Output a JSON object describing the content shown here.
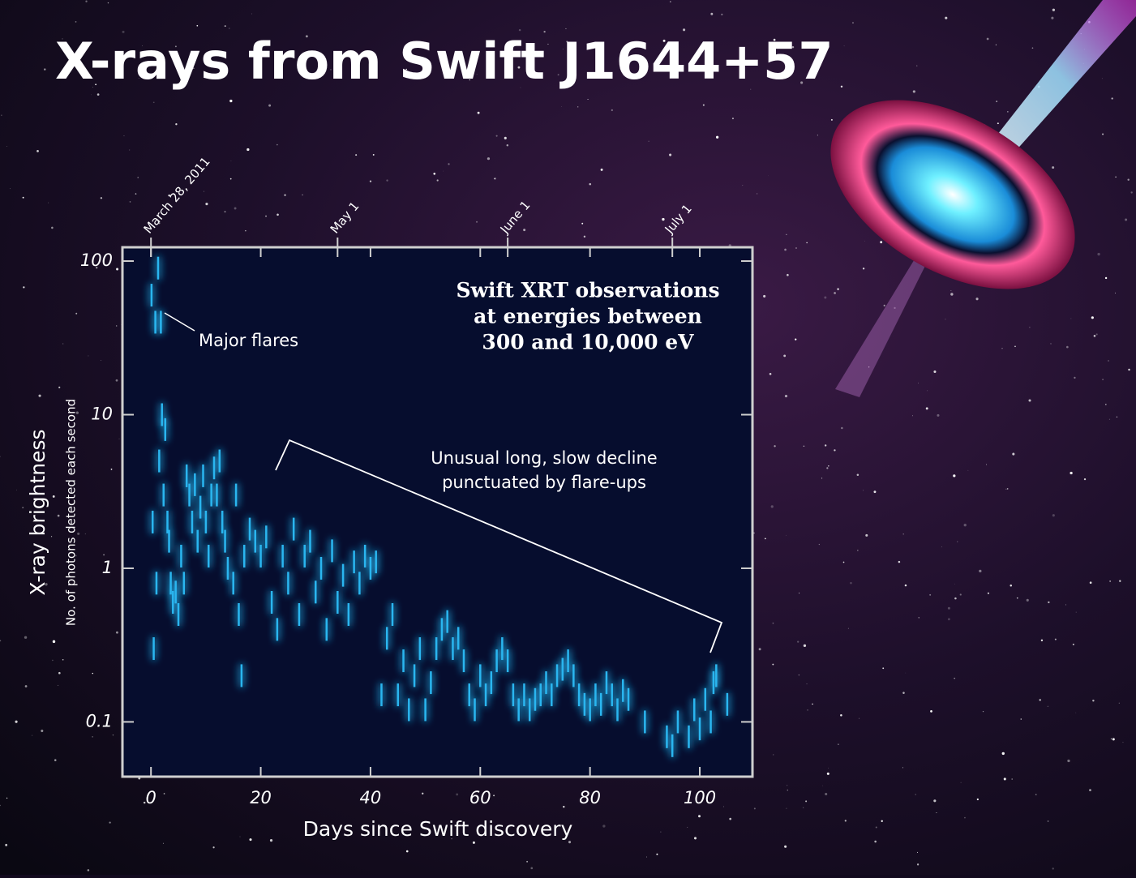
{
  "chart_data": {
    "type": "errorbar",
    "title": "X-rays from Swift J1644+57",
    "xlabel": "Days since Swift discovery",
    "ylabel": "X-ray brightness",
    "ylabel_sub": "No. of photons detected each second",
    "annotations": [
      "Major flares",
      "Swift XRT observations",
      "at energies between",
      "300 and 10,000 eV",
      "Unusual long, slow decline",
      "punctuated by flare-ups"
    ],
    "log_y": true,
    "color": "#29b6f0",
    "xlim": [
      -5.2,
      109.6
    ],
    "ylim": [
      0.044,
      123
    ],
    "xticks": [
      0,
      20,
      40,
      60,
      80,
      100
    ],
    "yticks": [
      0.1,
      1,
      10,
      100
    ],
    "x2ticks": [
      {
        "value": 0,
        "label": "March 28, 2011"
      },
      {
        "value": 34,
        "label": "May 1"
      },
      {
        "value": 65,
        "label": "June 1"
      },
      {
        "value": 95,
        "label": "July 1"
      }
    ],
    "x": [
      0.1,
      0.3,
      0.5,
      0.8,
      1.0,
      1.3,
      1.5,
      1.8,
      2.0,
      2.3,
      2.6,
      3.0,
      3.3,
      3.6,
      4,
      4.5,
      5,
      5.5,
      6,
      6.5,
      7,
      7.5,
      8,
      8.5,
      9,
      9.5,
      10,
      10.5,
      11,
      11.5,
      12,
      12.5,
      13,
      13.5,
      14,
      15,
      15.5,
      16,
      16.5,
      17,
      18,
      19,
      20,
      21,
      22,
      23,
      24,
      25,
      26,
      27,
      28,
      29,
      30,
      31,
      32,
      33,
      34,
      35,
      36,
      37,
      38,
      39,
      40,
      41,
      42,
      43,
      44,
      45,
      46,
      47,
      48,
      49,
      50,
      51,
      52,
      53,
      54,
      55,
      56,
      57,
      58,
      59,
      60,
      61,
      62,
      63,
      64,
      65,
      66,
      67,
      68,
      69,
      70,
      71,
      72,
      73,
      74,
      75,
      76,
      77,
      78,
      79,
      80,
      81,
      82,
      83,
      84,
      85,
      86,
      87,
      90,
      94,
      95,
      96,
      98,
      99,
      100,
      101,
      102,
      102.5,
      103,
      105
    ],
    "values": [
      60,
      2,
      0.3,
      40,
      0.8,
      90,
      5,
      40,
      10,
      3,
      8,
      2,
      1.5,
      0.8,
      0.6,
      0.7,
      0.5,
      1.2,
      0.8,
      4,
      3,
      2,
      3.5,
      1.5,
      2.5,
      4,
      2,
      1.2,
      3,
      4.5,
      3,
      5,
      2,
      1.5,
      1,
      0.8,
      3,
      0.5,
      0.2,
      1.2,
      1.8,
      1.5,
      1.2,
      1.6,
      0.6,
      0.4,
      1.2,
      0.8,
      1.8,
      0.5,
      1.2,
      1.5,
      0.7,
      1.0,
      0.4,
      1.3,
      0.6,
      0.9,
      0.5,
      1.1,
      0.8,
      1.2,
      1.0,
      1.1,
      0.15,
      0.35,
      0.5,
      0.15,
      0.25,
      0.12,
      0.2,
      0.3,
      0.12,
      0.18,
      0.3,
      0.4,
      0.45,
      0.3,
      0.35,
      0.25,
      0.15,
      0.12,
      0.2,
      0.15,
      0.18,
      0.25,
      0.3,
      0.25,
      0.15,
      0.12,
      0.15,
      0.12,
      0.14,
      0.15,
      0.18,
      0.15,
      0.2,
      0.22,
      0.25,
      0.2,
      0.15,
      0.13,
      0.12,
      0.15,
      0.13,
      0.18,
      0.15,
      0.12,
      0.16,
      0.14,
      0.1,
      0.08,
      0.07,
      0.1,
      0.08,
      0.12,
      0.09,
      0.14,
      0.1,
      0.18,
      0.2,
      0.13
    ]
  }
}
